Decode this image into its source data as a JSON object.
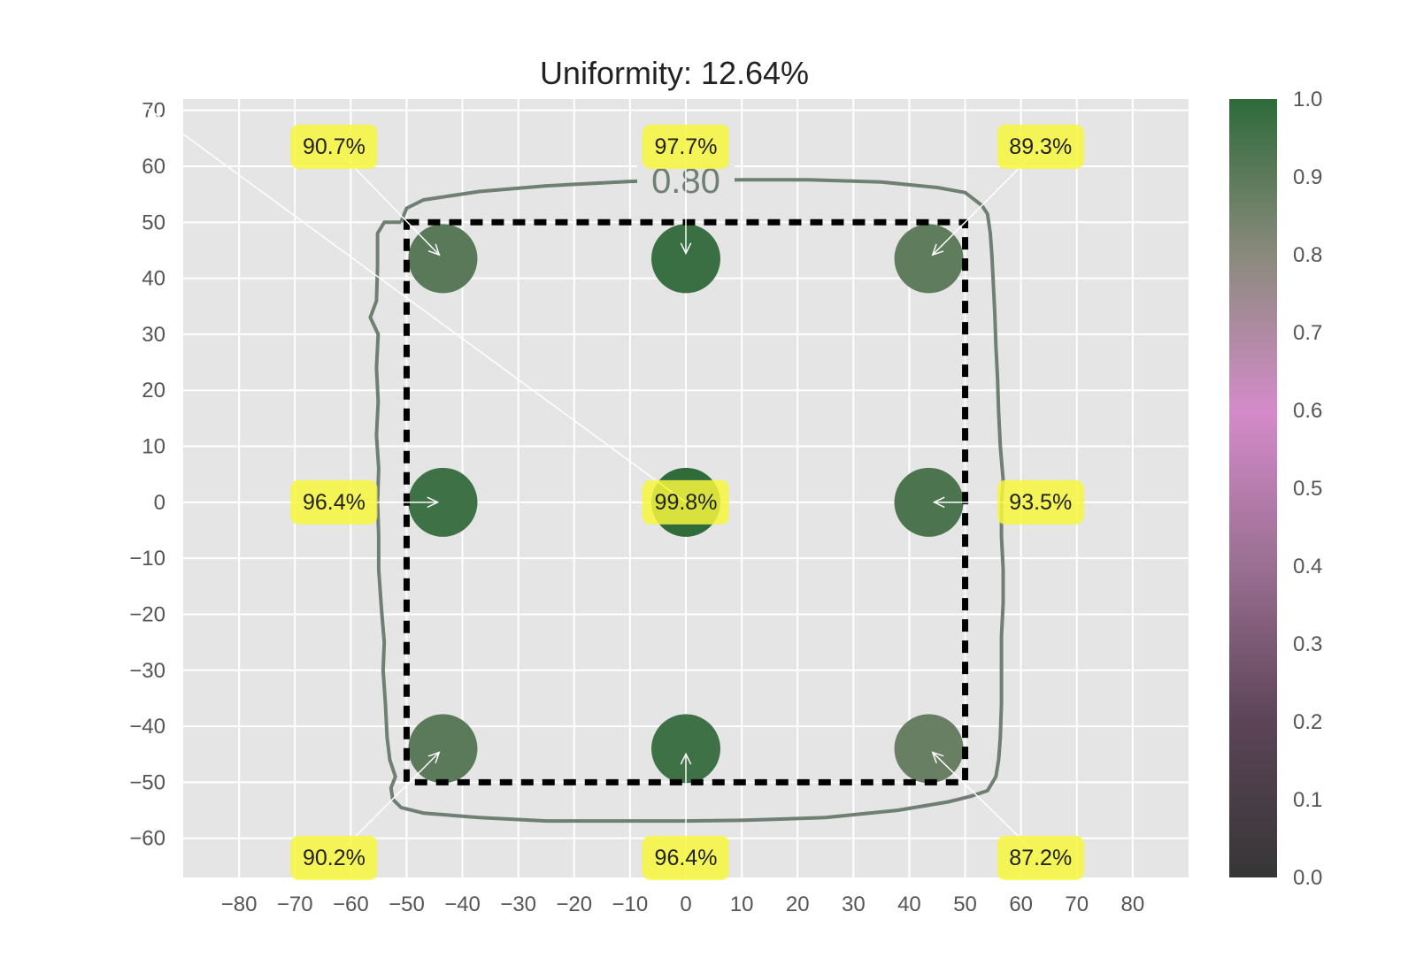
{
  "chart_data": {
    "type": "scatter",
    "title": "Uniformity: 12.64%",
    "xlabel": "",
    "ylabel": "",
    "xlim": [
      -90,
      90
    ],
    "ylim": [
      -67,
      72
    ],
    "xticks": [
      -80,
      -70,
      -60,
      -50,
      -40,
      -30,
      -20,
      -10,
      0,
      10,
      20,
      30,
      40,
      50,
      60,
      70,
      80
    ],
    "yticks": [
      -60,
      -50,
      -40,
      -30,
      -20,
      -10,
      0,
      10,
      20,
      30,
      40,
      50,
      60,
      70
    ],
    "grid": true,
    "points": [
      {
        "x": -43.5,
        "y": 43.5,
        "value": 0.907,
        "label": "90.7%",
        "label_x": -63,
        "label_y": 63.5
      },
      {
        "x": 0,
        "y": 43.5,
        "value": 0.977,
        "label": "97.7%",
        "label_x": 0,
        "label_y": 63.5
      },
      {
        "x": 43.5,
        "y": 43.5,
        "value": 0.893,
        "label": "89.3%",
        "label_x": 63.5,
        "label_y": 63.5
      },
      {
        "x": -43.5,
        "y": 0,
        "value": 0.964,
        "label": "96.4%",
        "label_x": -63,
        "label_y": 0
      },
      {
        "x": 0,
        "y": 0,
        "value": 0.998,
        "label": "99.8%",
        "label_x": 0,
        "label_y": 0
      },
      {
        "x": 43.5,
        "y": 0,
        "value": 0.935,
        "label": "93.5%",
        "label_x": 63.5,
        "label_y": 0
      },
      {
        "x": -43.5,
        "y": -44,
        "value": 0.902,
        "label": "90.2%",
        "label_x": -63,
        "label_y": -63.5
      },
      {
        "x": 0,
        "y": -44,
        "value": 0.964,
        "label": "96.4%",
        "label_x": 0,
        "label_y": -63.5
      },
      {
        "x": 43.5,
        "y": -44,
        "value": 0.872,
        "label": "87.2%",
        "label_x": 63.5,
        "label_y": -63.5
      }
    ],
    "reference_rectangle": {
      "x": [
        -50,
        50
      ],
      "y": [
        -50,
        50
      ],
      "style": "dashed"
    },
    "contour": {
      "level_label": "0.80",
      "level": 0.8,
      "color": "#6f7f73",
      "path": [
        [
          -51,
          50
        ],
        [
          -50,
          52.5
        ],
        [
          -47,
          54
        ],
        [
          -37,
          55.5
        ],
        [
          -25,
          56.5
        ],
        [
          -10,
          57.3
        ],
        [
          0,
          57.5
        ],
        [
          10,
          57.6
        ],
        [
          22,
          57.6
        ],
        [
          35,
          57.2
        ],
        [
          45,
          56.2
        ],
        [
          50,
          55.3
        ],
        [
          53,
          53
        ],
        [
          54,
          51.5
        ],
        [
          54.5,
          48
        ],
        [
          54.8,
          44
        ],
        [
          55,
          40
        ],
        [
          55.3,
          34
        ],
        [
          55.5,
          28
        ],
        [
          55.8,
          22
        ],
        [
          56,
          16
        ],
        [
          56.3,
          10
        ],
        [
          56.8,
          4
        ],
        [
          56.5,
          0
        ],
        [
          56.5,
          -6
        ],
        [
          56.8,
          -12
        ],
        [
          56.8,
          -18
        ],
        [
          56.5,
          -24
        ],
        [
          56.5,
          -30
        ],
        [
          56.5,
          -36
        ],
        [
          56.3,
          -42
        ],
        [
          56,
          -46
        ],
        [
          55.5,
          -49
        ],
        [
          54,
          -51.5
        ],
        [
          51,
          -52.5
        ],
        [
          47,
          -53.5
        ],
        [
          38,
          -55
        ],
        [
          25,
          -56.3
        ],
        [
          10,
          -56.8
        ],
        [
          0,
          -56.9
        ],
        [
          -10,
          -56.9
        ],
        [
          -25,
          -56.9
        ],
        [
          -37,
          -56.3
        ],
        [
          -47,
          -55.5
        ],
        [
          -51,
          -54.5
        ],
        [
          -52.5,
          -53
        ],
        [
          -52.8,
          -51
        ],
        [
          -52,
          -49
        ],
        [
          -53,
          -46
        ],
        [
          -53.5,
          -42
        ],
        [
          -53.8,
          -36
        ],
        [
          -54.2,
          -30
        ],
        [
          -54,
          -25
        ],
        [
          -54.5,
          -19
        ],
        [
          -55,
          -12
        ],
        [
          -55,
          -6
        ],
        [
          -55.2,
          0
        ],
        [
          -55,
          6
        ],
        [
          -55.4,
          12
        ],
        [
          -55.1,
          18
        ],
        [
          -55.4,
          24
        ],
        [
          -55.1,
          30
        ],
        [
          -56.5,
          33
        ],
        [
          -55.4,
          36
        ],
        [
          -55.2,
          42
        ],
        [
          -55.2,
          48
        ],
        [
          -54,
          50
        ],
        [
          -51,
          50
        ]
      ]
    },
    "colorbar": {
      "min": 0.0,
      "max": 1.0,
      "ticks": [
        "0.0",
        "0.1",
        "0.2",
        "0.3",
        "0.4",
        "0.5",
        "0.6",
        "0.7",
        "0.8",
        "0.9",
        "1.0"
      ],
      "colors": [
        "#363636",
        "#5c4457",
        "#9a6f92",
        "#d48bc9",
        "#8a8a7c",
        "#2e6b3a"
      ]
    },
    "colors": {
      "plot_background": "#e5e5e5",
      "grid": "#ffffff",
      "annotation_box": "#f7f73d",
      "reference_rectangle": "#000000"
    }
  }
}
